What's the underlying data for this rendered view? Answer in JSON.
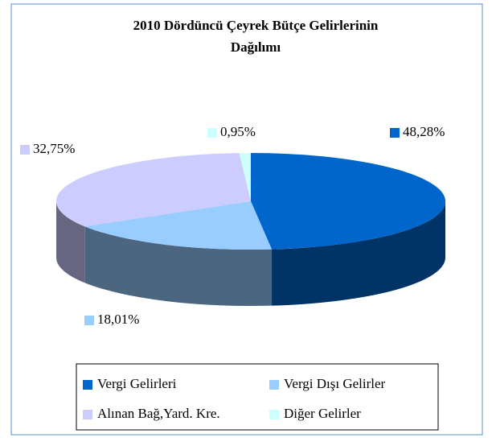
{
  "chart_data": {
    "type": "pie3d",
    "title": "2010 Dördüncü Çeyrek Bütçe Gelirlerinin Dağılımı",
    "categories": [
      "Vergi Gelirleri",
      "Vergi Dışı Gelirler",
      "Alınan Bağ,Yard. Kre.",
      "Diğer Gelirler"
    ],
    "values": [
      48.28,
      18.01,
      32.75,
      0.95
    ],
    "value_labels": [
      "48,28%",
      "18,01%",
      "32,75%",
      "0,95%"
    ],
    "colors": [
      "#0066cc",
      "#99ccff",
      "#ccccff",
      "#ccffff"
    ],
    "legend": "bottom"
  }
}
